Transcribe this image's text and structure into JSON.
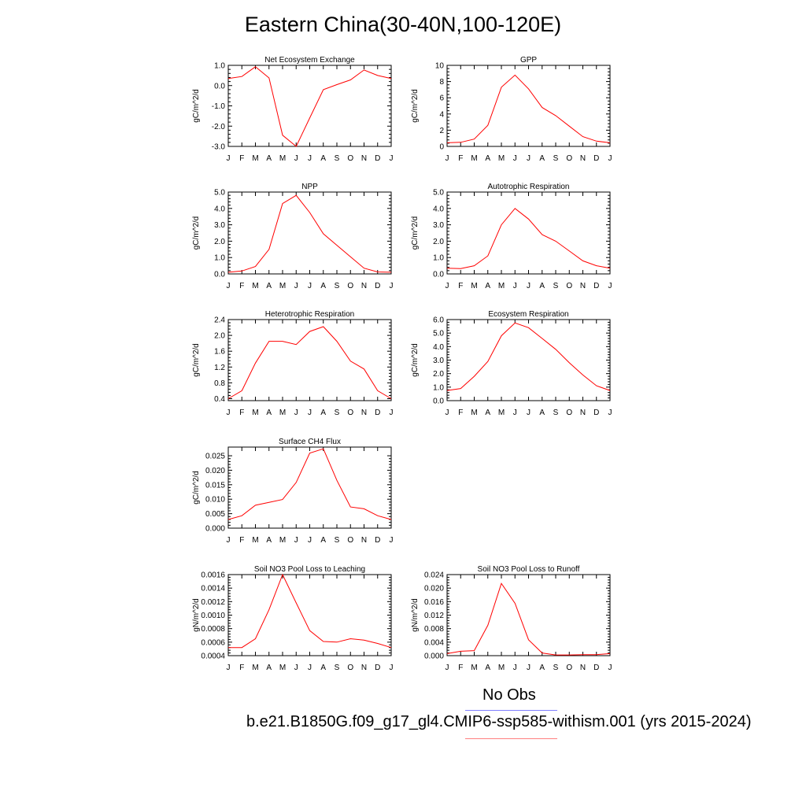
{
  "title": "Eastern China(30-40N,100-120E)",
  "legend": {
    "obs_label": "No Obs",
    "obs_color": "#7f7fff",
    "model_label": "b.e21.B1850G.f09_g17_gl4.CMIP6-ssp585-withism.001 (yrs 2015-2024)",
    "model_color": "#ff7f7f"
  },
  "line_color": "#ff0000",
  "chart_data": [
    {
      "type": "line",
      "title": "Net Ecosystem Exchange",
      "ylabel": "gC/m^2/d",
      "categories": [
        "J",
        "F",
        "M",
        "A",
        "M",
        "J",
        "J",
        "A",
        "S",
        "O",
        "N",
        "D",
        "J"
      ],
      "ylim": [
        -3.0,
        1.0
      ],
      "yticks": [
        "-3.0",
        "-2.0",
        "-1.0",
        "0.0",
        "1.0"
      ],
      "ytick_values": [
        -3,
        -2,
        -1,
        0,
        1
      ],
      "values": [
        0.35,
        0.45,
        0.93,
        0.38,
        -2.45,
        -3.0,
        -1.6,
        -0.2,
        0.05,
        0.28,
        0.77,
        0.5,
        0.35
      ]
    },
    {
      "type": "line",
      "title": "GPP",
      "ylabel": "gC/m^2/d",
      "categories": [
        "J",
        "F",
        "M",
        "A",
        "M",
        "J",
        "J",
        "A",
        "S",
        "O",
        "N",
        "D",
        "J"
      ],
      "ylim": [
        0,
        10
      ],
      "yticks": [
        "0",
        "2",
        "4",
        "6",
        "8",
        "10"
      ],
      "ytick_values": [
        0,
        2,
        4,
        6,
        8,
        10
      ],
      "values": [
        0.45,
        0.5,
        0.9,
        2.6,
        7.3,
        8.8,
        7.1,
        4.8,
        3.8,
        2.5,
        1.2,
        0.65,
        0.45
      ]
    },
    {
      "type": "line",
      "title": "NPP",
      "ylabel": "gC/m^2/d",
      "categories": [
        "J",
        "F",
        "M",
        "A",
        "M",
        "J",
        "J",
        "A",
        "S",
        "O",
        "N",
        "D",
        "J"
      ],
      "ylim": [
        0,
        5
      ],
      "yticks": [
        "0.0",
        "1.0",
        "2.0",
        "3.0",
        "4.0",
        "5.0"
      ],
      "ytick_values": [
        0,
        1,
        2,
        3,
        4,
        5
      ],
      "values": [
        0.1,
        0.18,
        0.45,
        1.5,
        4.3,
        4.8,
        3.75,
        2.45,
        1.75,
        1.05,
        0.35,
        0.12,
        0.1
      ]
    },
    {
      "type": "line",
      "title": "Autotrophic Respiration",
      "ylabel": "gC/m^2/d",
      "categories": [
        "J",
        "F",
        "M",
        "A",
        "M",
        "J",
        "J",
        "A",
        "S",
        "O",
        "N",
        "D",
        "J"
      ],
      "ylim": [
        0,
        5
      ],
      "yticks": [
        "0.0",
        "1.0",
        "2.0",
        "3.0",
        "4.0",
        "5.0"
      ],
      "ytick_values": [
        0,
        1,
        2,
        3,
        4,
        5
      ],
      "values": [
        0.35,
        0.32,
        0.5,
        1.1,
        3.0,
        4.0,
        3.35,
        2.4,
        2.0,
        1.4,
        0.8,
        0.5,
        0.35
      ]
    },
    {
      "type": "line",
      "title": "Heterotrophic Respiration",
      "ylabel": "gC/m^2/d",
      "categories": [
        "J",
        "F",
        "M",
        "A",
        "M",
        "J",
        "J",
        "A",
        "S",
        "O",
        "N",
        "D",
        "J"
      ],
      "ylim": [
        0.35,
        2.4
      ],
      "yticks": [
        "0.4",
        "0.8",
        "1.2",
        "1.6",
        "2.0",
        "2.4"
      ],
      "ytick_values": [
        0.4,
        0.8,
        1.2,
        1.6,
        2.0,
        2.4
      ],
      "values": [
        0.4,
        0.6,
        1.3,
        1.85,
        1.85,
        1.77,
        2.1,
        2.22,
        1.85,
        1.35,
        1.15,
        0.6,
        0.4
      ]
    },
    {
      "type": "line",
      "title": "Ecosystem Respiration",
      "ylabel": "gC/m^2/d",
      "categories": [
        "J",
        "F",
        "M",
        "A",
        "M",
        "J",
        "J",
        "A",
        "S",
        "O",
        "N",
        "D",
        "J"
      ],
      "ylim": [
        0,
        6
      ],
      "yticks": [
        "0.0",
        "1.0",
        "2.0",
        "3.0",
        "4.0",
        "5.0",
        "6.0"
      ],
      "ytick_values": [
        0,
        1,
        2,
        3,
        4,
        5,
        6
      ],
      "values": [
        0.75,
        0.9,
        1.8,
        2.9,
        4.8,
        5.75,
        5.4,
        4.6,
        3.8,
        2.8,
        1.9,
        1.1,
        0.75
      ]
    },
    {
      "type": "line",
      "title": "Surface CH4 Flux",
      "ylabel": "gC/m^2/d",
      "categories": [
        "J",
        "F",
        "M",
        "A",
        "M",
        "J",
        "J",
        "A",
        "S",
        "O",
        "N",
        "D",
        "J"
      ],
      "ylim": [
        0,
        0.028
      ],
      "yticks": [
        "0.000",
        "0.005",
        "0.010",
        "0.015",
        "0.020",
        "0.025"
      ],
      "ytick_values": [
        0,
        0.005,
        0.01,
        0.015,
        0.02,
        0.025
      ],
      "values": [
        0.003,
        0.0043,
        0.0079,
        0.0089,
        0.0099,
        0.0158,
        0.0259,
        0.0274,
        0.0165,
        0.0073,
        0.0067,
        0.0043,
        0.003
      ]
    },
    {
      "type": "line",
      "title": "Soil NO3 Pool Loss to Leaching",
      "ylabel": "gN/m^2/d",
      "categories": [
        "J",
        "F",
        "M",
        "A",
        "M",
        "J",
        "J",
        "A",
        "S",
        "O",
        "N",
        "D",
        "J"
      ],
      "ylim": [
        0.0004,
        0.0016
      ],
      "yticks": [
        "0.0004",
        "0.0006",
        "0.0008",
        "0.0010",
        "0.0012",
        "0.0014",
        "0.0016"
      ],
      "ytick_values": [
        0.0004,
        0.0006,
        0.0008,
        0.001,
        0.0012,
        0.0014,
        0.0016
      ],
      "values": [
        0.00052,
        0.00052,
        0.00065,
        0.00108,
        0.0016,
        0.00118,
        0.00077,
        0.00061,
        0.0006,
        0.00065,
        0.00063,
        0.00058,
        0.00052
      ]
    },
    {
      "type": "line",
      "title": "Soil NO3 Pool Loss to Runoff",
      "ylabel": "gN/m^2/d",
      "categories": [
        "J",
        "F",
        "M",
        "A",
        "M",
        "J",
        "J",
        "A",
        "S",
        "O",
        "N",
        "D",
        "J"
      ],
      "ylim": [
        0,
        0.024
      ],
      "yticks": [
        "0.000",
        "0.004",
        "0.008",
        "0.012",
        "0.016",
        "0.020",
        "0.024"
      ],
      "ytick_values": [
        0,
        0.004,
        0.008,
        0.012,
        0.016,
        0.02,
        0.024
      ],
      "values": [
        0.0006,
        0.0013,
        0.0015,
        0.009,
        0.0214,
        0.0155,
        0.0047,
        0.0008,
        0.0002,
        0.0002,
        0.0003,
        0.0003,
        0.0006
      ]
    }
  ]
}
